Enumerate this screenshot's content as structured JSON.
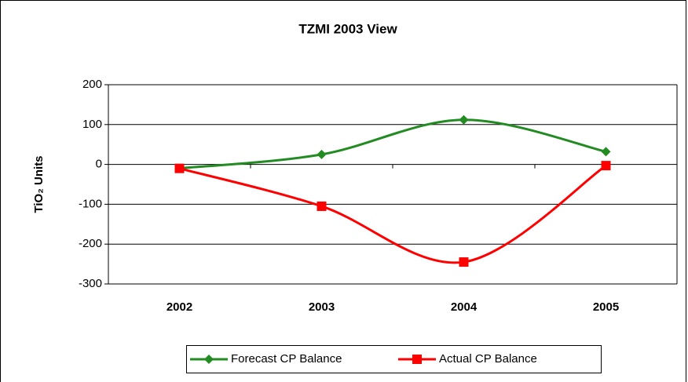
{
  "chart_data": {
    "type": "line",
    "title": "TZMI 2003 View",
    "y_label": "TiO₂ Units",
    "categories": [
      "2002",
      "2003",
      "2004",
      "2005"
    ],
    "series": [
      {
        "name": "Forecast CP Balance",
        "color": "#228b22",
        "marker": "diamond",
        "values": [
          -10,
          25,
          112,
          32
        ]
      },
      {
        "name": "Actual CP Balance",
        "color": "#ff0000",
        "marker": "square",
        "values": [
          -10,
          -105,
          -245,
          -3
        ]
      }
    ],
    "ylim": [
      -300,
      200
    ],
    "yticks": [
      -300,
      -200,
      -100,
      0,
      100,
      200
    ],
    "grid": true,
    "smooth": true,
    "legend": "bottom"
  }
}
